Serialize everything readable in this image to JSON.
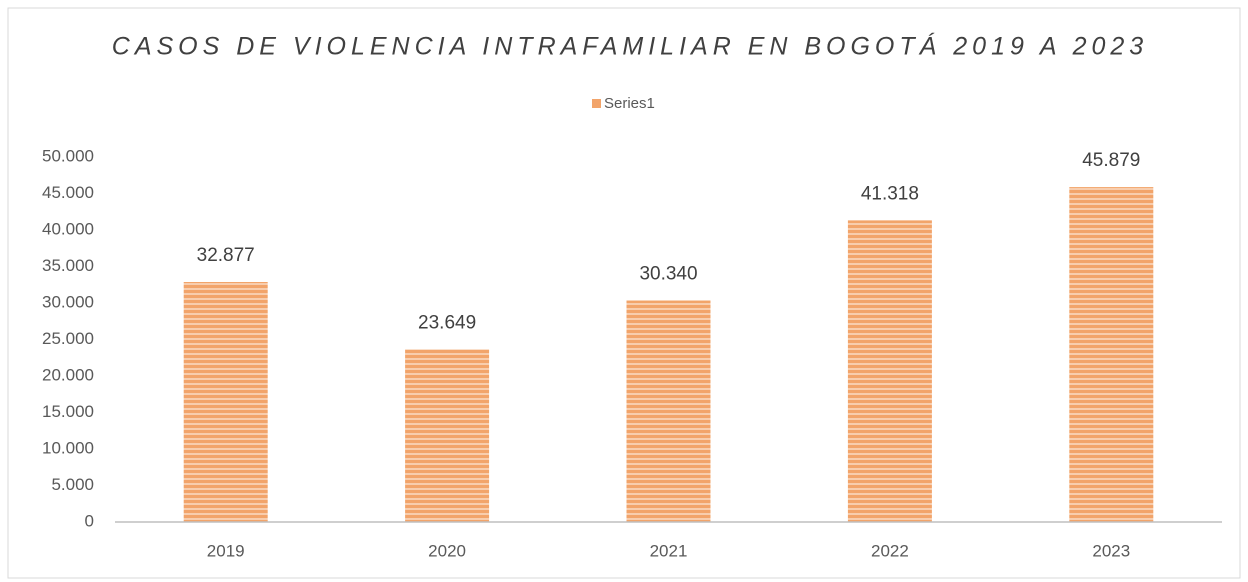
{
  "chart_data": {
    "type": "bar",
    "title": "CASOS DE VIOLENCIA INTRAFAMILIAR EN BOGOTÁ 2019 A 2023",
    "categories": [
      "2019",
      "2020",
      "2021",
      "2022",
      "2023"
    ],
    "series": [
      {
        "name": "Series1",
        "color": "#f2a46a",
        "values": [
          32877,
          23649,
          30340,
          41318,
          45879
        ],
        "value_labels": [
          "32.877",
          "23.649",
          "30.340",
          "41.318",
          "45.879"
        ]
      }
    ],
    "ylim": [
      0,
      50000
    ],
    "yticks": [
      0,
      {
        "value": 5000,
        "label": "5.000"
      },
      {
        "value": 10000,
        "label": "10.000"
      },
      {
        "value": 15000,
        "label": "15.000"
      },
      {
        "value": 20000,
        "label": "20.000"
      },
      {
        "value": 25000,
        "label": "25.000"
      },
      {
        "value": 30000,
        "label": "30.000"
      },
      {
        "value": 35000,
        "label": "35.000"
      },
      {
        "value": 40000,
        "label": "40.000"
      },
      {
        "value": 45000,
        "label": "45.000"
      },
      {
        "value": 50000,
        "label": "50.000"
      }
    ],
    "legend": "top",
    "grid": false
  }
}
